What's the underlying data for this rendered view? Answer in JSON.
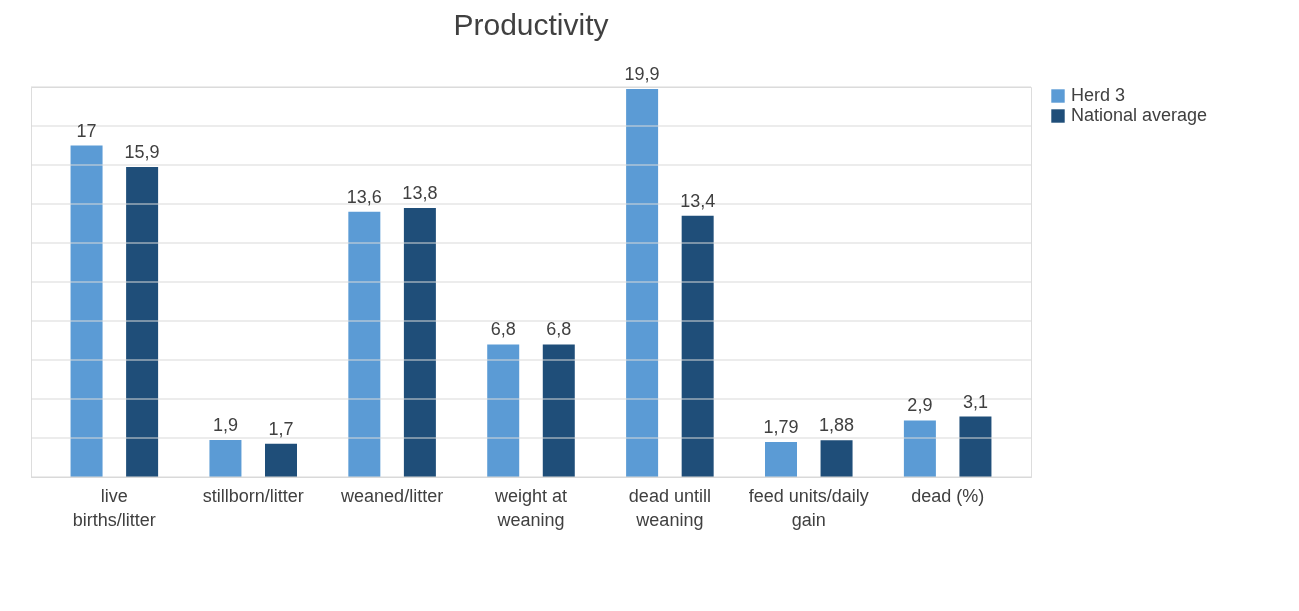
{
  "chart_data": {
    "type": "bar",
    "title": "Productivity",
    "categories": [
      "live births/litter",
      "stillborn/litter",
      "weaned/litter",
      "weight at weaning",
      "dead untill weaning",
      "feed units/daily gain",
      "dead (%)"
    ],
    "series": [
      {
        "name": "Herd 3",
        "color": "#5b9bd5",
        "values": [
          17,
          1.9,
          13.6,
          6.8,
          19.9,
          1.79,
          2.9
        ],
        "value_labels": [
          "17",
          "1,9",
          "13,6",
          "6,8",
          "19,9",
          "1,79",
          "2,9"
        ]
      },
      {
        "name": "National average",
        "color": "#1f4e79",
        "values": [
          15.9,
          1.7,
          13.8,
          6.8,
          13.4,
          1.88,
          3.1
        ],
        "value_labels": [
          "15,9",
          "1,7",
          "13,8",
          "6,8",
          "13,4",
          "1,88",
          "3,1"
        ]
      }
    ],
    "ylim": [
      0,
      20
    ],
    "yticks": [
      {
        "value": 0,
        "label": null
      },
      {
        "value": 2,
        "label": null
      },
      {
        "value": 4,
        "label": null
      },
      {
        "value": 6,
        "label": null
      },
      {
        "value": 8,
        "label": null
      },
      {
        "value": 10,
        "label": null
      },
      {
        "value": 12,
        "label": null
      },
      {
        "value": 14,
        "label": null
      },
      {
        "value": 16,
        "label": null
      },
      {
        "value": 18,
        "label": null
      },
      {
        "value": 20,
        "label": null
      }
    ],
    "tick_labels": "x",
    "grid": "y",
    "legend": "right"
  }
}
